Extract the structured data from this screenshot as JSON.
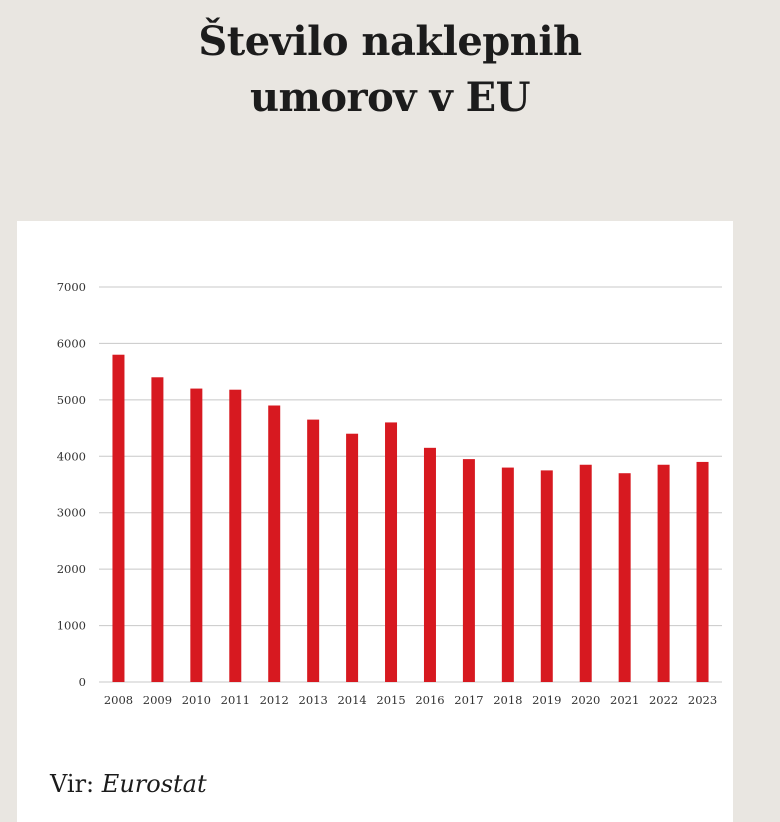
{
  "title_lines": [
    "Število naklepnih",
    "umorov v EU"
  ],
  "source": {
    "label": "Vir:",
    "value": "Eurostat"
  },
  "colors": {
    "bar": "#d71920",
    "grid": "#c8c8c8",
    "background": "#e9e6e1",
    "panel": "#ffffff"
  },
  "chart_data": {
    "type": "bar",
    "title": "Število naklepnih umorov v EU",
    "xlabel": "",
    "ylabel": "",
    "ylim": [
      0,
      7000
    ],
    "yticks": [
      0,
      1000,
      2000,
      3000,
      4000,
      5000,
      6000,
      7000
    ],
    "grid": true,
    "legend": "none",
    "categories": [
      "2008",
      "2009",
      "2010",
      "2011",
      "2012",
      "2013",
      "2014",
      "2015",
      "2016",
      "2017",
      "2018",
      "2019",
      "2020",
      "2021",
      "2022",
      "2023"
    ],
    "values": [
      5800,
      5400,
      5200,
      5180,
      4900,
      4650,
      4400,
      4600,
      4150,
      3950,
      3800,
      3750,
      3850,
      3700,
      3850,
      3900
    ]
  }
}
